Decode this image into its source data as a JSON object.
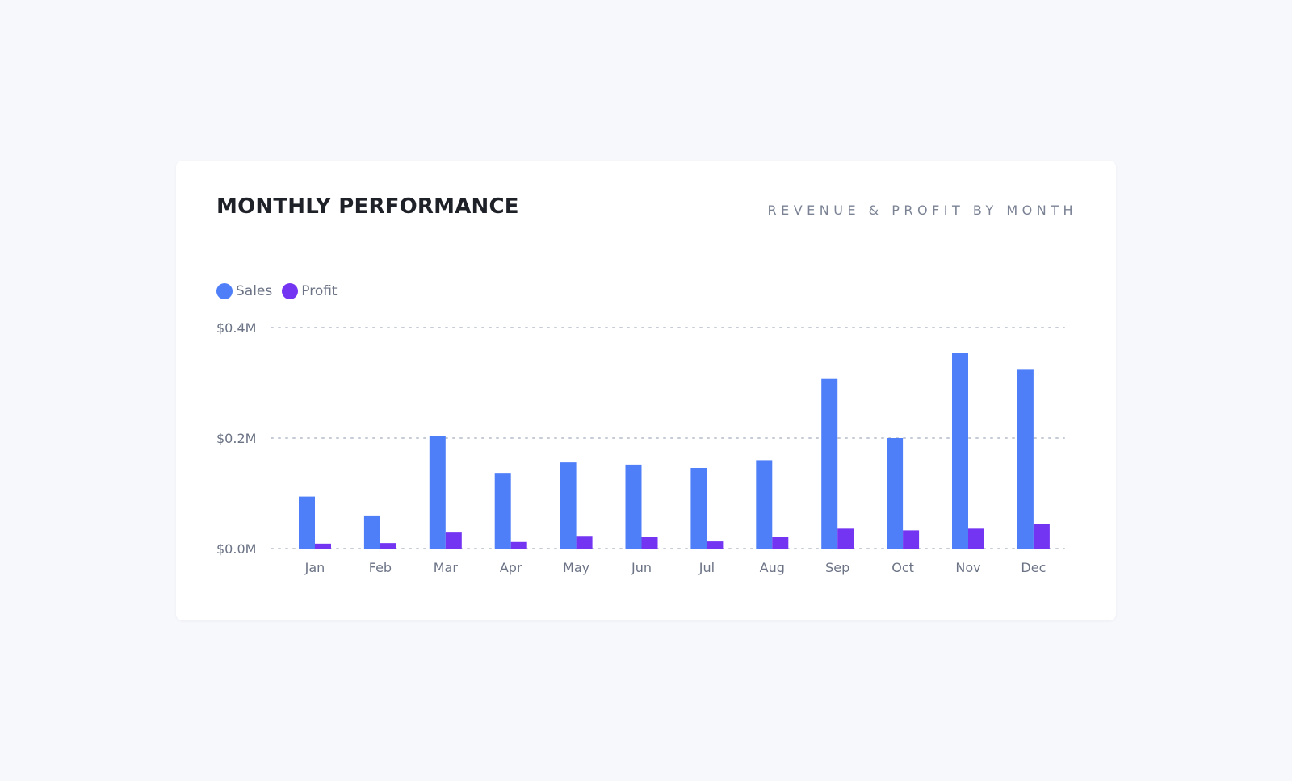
{
  "card": {
    "title": "MONTHLY PERFORMANCE",
    "subtitle": "REVENUE & PROFIT BY MONTH"
  },
  "colors": {
    "sales": "#4f7ff8",
    "profit": "#7435f2",
    "grid": "#c6cbd6"
  },
  "chart_data": {
    "type": "bar",
    "categories": [
      "Jan",
      "Feb",
      "Mar",
      "Apr",
      "May",
      "Jun",
      "Jul",
      "Aug",
      "Sep",
      "Oct",
      "Nov",
      "Dec"
    ],
    "series": [
      {
        "name": "Sales",
        "values": [
          0.094,
          0.06,
          0.204,
          0.137,
          0.156,
          0.152,
          0.146,
          0.16,
          0.307,
          0.2,
          0.354,
          0.325
        ]
      },
      {
        "name": "Profit",
        "values": [
          0.009,
          0.01,
          0.029,
          0.012,
          0.023,
          0.021,
          0.013,
          0.021,
          0.036,
          0.033,
          0.036,
          0.044
        ]
      }
    ],
    "yticks": [
      0,
      0.2,
      0.4
    ],
    "ytick_labels": [
      "$0.0M",
      "$0.2M",
      "$0.4M"
    ],
    "ylim": [
      0,
      0.4
    ],
    "grid": true,
    "legend": "top-left"
  }
}
